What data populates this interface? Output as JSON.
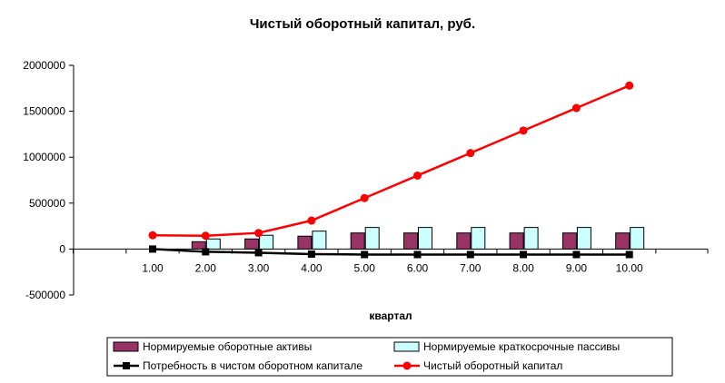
{
  "chart_data": {
    "type": "bar",
    "title": "Чистый оборотный капитал, руб.",
    "xlabel": "квартал",
    "ylabel": "",
    "categories": [
      "1.00",
      "2.00",
      "3.00",
      "4.00",
      "5.00",
      "6.00",
      "7.00",
      "8.00",
      "9.00",
      "10.00"
    ],
    "ylim": [
      -500000,
      2000000
    ],
    "yticks": [
      2000000,
      1500000,
      1000000,
      500000,
      0,
      -500000
    ],
    "ytick_labels": [
      "2000000",
      "1500000",
      "1000000",
      "500000",
      "0",
      "-500000"
    ],
    "grid": false,
    "legend_position": "bottom",
    "series": [
      {
        "name": "Нормируемые оборотные активы",
        "kind": "bar",
        "color": "#993366",
        "values": [
          0,
          80000,
          110000,
          140000,
          175000,
          175000,
          175000,
          175000,
          175000,
          175000
        ]
      },
      {
        "name": "Нормируемые краткосрочные пассивы",
        "kind": "bar",
        "color": "#ccffff",
        "values": [
          0,
          110000,
          150000,
          195000,
          235000,
          235000,
          235000,
          235000,
          235000,
          235000
        ]
      },
      {
        "name": "Потребность в чистом оборотном капитале",
        "kind": "line",
        "color": "#000000",
        "marker": "square",
        "values": [
          0,
          -30000,
          -40000,
          -55000,
          -60000,
          -60000,
          -60000,
          -60000,
          -60000,
          -60000
        ]
      },
      {
        "name": "Чистый оборотный капитал",
        "kind": "line",
        "color": "#ff0000",
        "marker": "circle",
        "values": [
          150000,
          145000,
          175000,
          310000,
          555000,
          800000,
          1045000,
          1290000,
          1535000,
          1780000
        ]
      }
    ]
  }
}
